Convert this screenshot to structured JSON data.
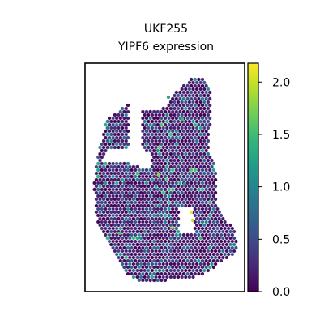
{
  "chart_data": {
    "type": "scatter",
    "title_line1": "UKF255",
    "title_line2": "YIPF6 expression",
    "xlabel": "",
    "ylabel": "",
    "colorbar": {
      "min": 0.0,
      "max": 2.18,
      "colormap": "viridis",
      "ticks": [
        {
          "value": 0.0,
          "label": "0.0"
        },
        {
          "value": 0.5,
          "label": "0.5"
        },
        {
          "value": 1.0,
          "label": "1.0"
        },
        {
          "value": 1.5,
          "label": "1.5"
        },
        {
          "value": 2.0,
          "label": "2.0"
        }
      ]
    },
    "grid": false,
    "legend": "colorbar-right",
    "marker": "hexagon",
    "highlight_spots": [
      {
        "value": 2.1
      },
      {
        "value": 2.0
      },
      {
        "value": 1.9
      },
      {
        "value": 1.8
      },
      {
        "value": 1.6
      },
      {
        "value": 1.5
      },
      {
        "value": 1.3
      },
      {
        "value": 1.2
      }
    ]
  },
  "colors": {
    "viridis": [
      "#440154",
      "#482878",
      "#3e4989",
      "#31688e",
      "#26828e",
      "#1f9e89",
      "#35b779",
      "#6ece58",
      "#b5de2b",
      "#fde725"
    ],
    "frame": "#000000",
    "background": "#ffffff"
  }
}
